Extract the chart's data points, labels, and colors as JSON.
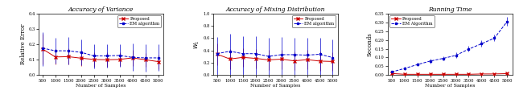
{
  "x": [
    500,
    1000,
    1500,
    2000,
    2500,
    3000,
    3500,
    4000,
    4500,
    5000
  ],
  "var_proposed_mean": [
    0.17,
    0.118,
    0.12,
    0.11,
    0.102,
    0.1,
    0.102,
    0.112,
    0.1,
    0.088
  ],
  "var_proposed_lo": [
    0.072,
    0.068,
    0.068,
    0.06,
    0.055,
    0.052,
    0.058,
    0.062,
    0.055,
    0.04
  ],
  "var_proposed_hi": [
    0.268,
    0.168,
    0.172,
    0.16,
    0.15,
    0.148,
    0.148,
    0.162,
    0.145,
    0.135
  ],
  "var_em_mean": [
    0.175,
    0.158,
    0.158,
    0.148,
    0.125,
    0.125,
    0.128,
    0.115,
    0.112,
    0.112
  ],
  "var_em_lo": [
    0.062,
    0.075,
    0.068,
    0.065,
    0.045,
    0.048,
    0.055,
    0.028,
    0.022,
    0.03
  ],
  "var_em_hi": [
    0.278,
    0.242,
    0.248,
    0.23,
    0.2,
    0.202,
    0.202,
    0.208,
    0.202,
    0.198
  ],
  "mix_proposed_mean": [
    0.34,
    0.262,
    0.288,
    0.272,
    0.248,
    0.26,
    0.232,
    0.252,
    0.228,
    0.222
  ],
  "mix_proposed_lo": [
    0.16,
    0.1,
    0.132,
    0.112,
    0.09,
    0.102,
    0.078,
    0.092,
    0.072,
    0.068
  ],
  "mix_proposed_hi": [
    0.51,
    0.422,
    0.438,
    0.425,
    0.408,
    0.415,
    0.385,
    0.408,
    0.382,
    0.375
  ],
  "mix_em_mean": [
    0.348,
    0.388,
    0.348,
    0.348,
    0.305,
    0.332,
    0.332,
    0.325,
    0.338,
    0.285
  ],
  "mix_em_lo": [
    0.005,
    0.005,
    0.005,
    0.005,
    0.005,
    0.005,
    0.005,
    0.005,
    0.005,
    0.005
  ],
  "mix_em_hi": [
    0.618,
    0.668,
    0.625,
    0.63,
    0.61,
    0.62,
    0.61,
    0.61,
    0.61,
    0.578
  ],
  "run_proposed_mean": [
    0.01,
    0.005,
    0.005,
    0.005,
    0.005,
    0.005,
    0.005,
    0.007,
    0.007,
    0.009
  ],
  "run_proposed_lo": [
    0.003,
    0.001,
    0.001,
    0.001,
    0.001,
    0.001,
    0.001,
    0.002,
    0.002,
    0.003
  ],
  "run_proposed_hi": [
    0.017,
    0.009,
    0.009,
    0.009,
    0.009,
    0.009,
    0.009,
    0.012,
    0.012,
    0.015
  ],
  "run_em_mean": [
    0.018,
    0.038,
    0.06,
    0.08,
    0.095,
    0.112,
    0.148,
    0.178,
    0.21,
    0.305
  ],
  "run_em_lo": [
    0.012,
    0.03,
    0.05,
    0.068,
    0.082,
    0.098,
    0.132,
    0.16,
    0.192,
    0.278
  ],
  "run_em_hi": [
    0.025,
    0.048,
    0.072,
    0.095,
    0.108,
    0.128,
    0.165,
    0.198,
    0.228,
    0.332
  ],
  "color_proposed": "#cc0000",
  "color_em": "#0000cc",
  "title1": "Accuracy of Variance",
  "title2": "Accuracy of Mixing Distribution",
  "title3": "Running Time",
  "xlabel": "Number of Samples",
  "ylabel1": "Relative Error",
  "ylabel2": "$W_1$",
  "ylabel3": "Seconds",
  "ylim1": [
    0.0,
    0.4
  ],
  "ylim2": [
    0.0,
    1.0
  ],
  "ylim3": [
    0.0,
    0.35
  ],
  "legend1_labels": [
    "Proposed",
    "EM algorithm"
  ],
  "legend3_labels": [
    "Proposed",
    "EM Algorithm"
  ]
}
